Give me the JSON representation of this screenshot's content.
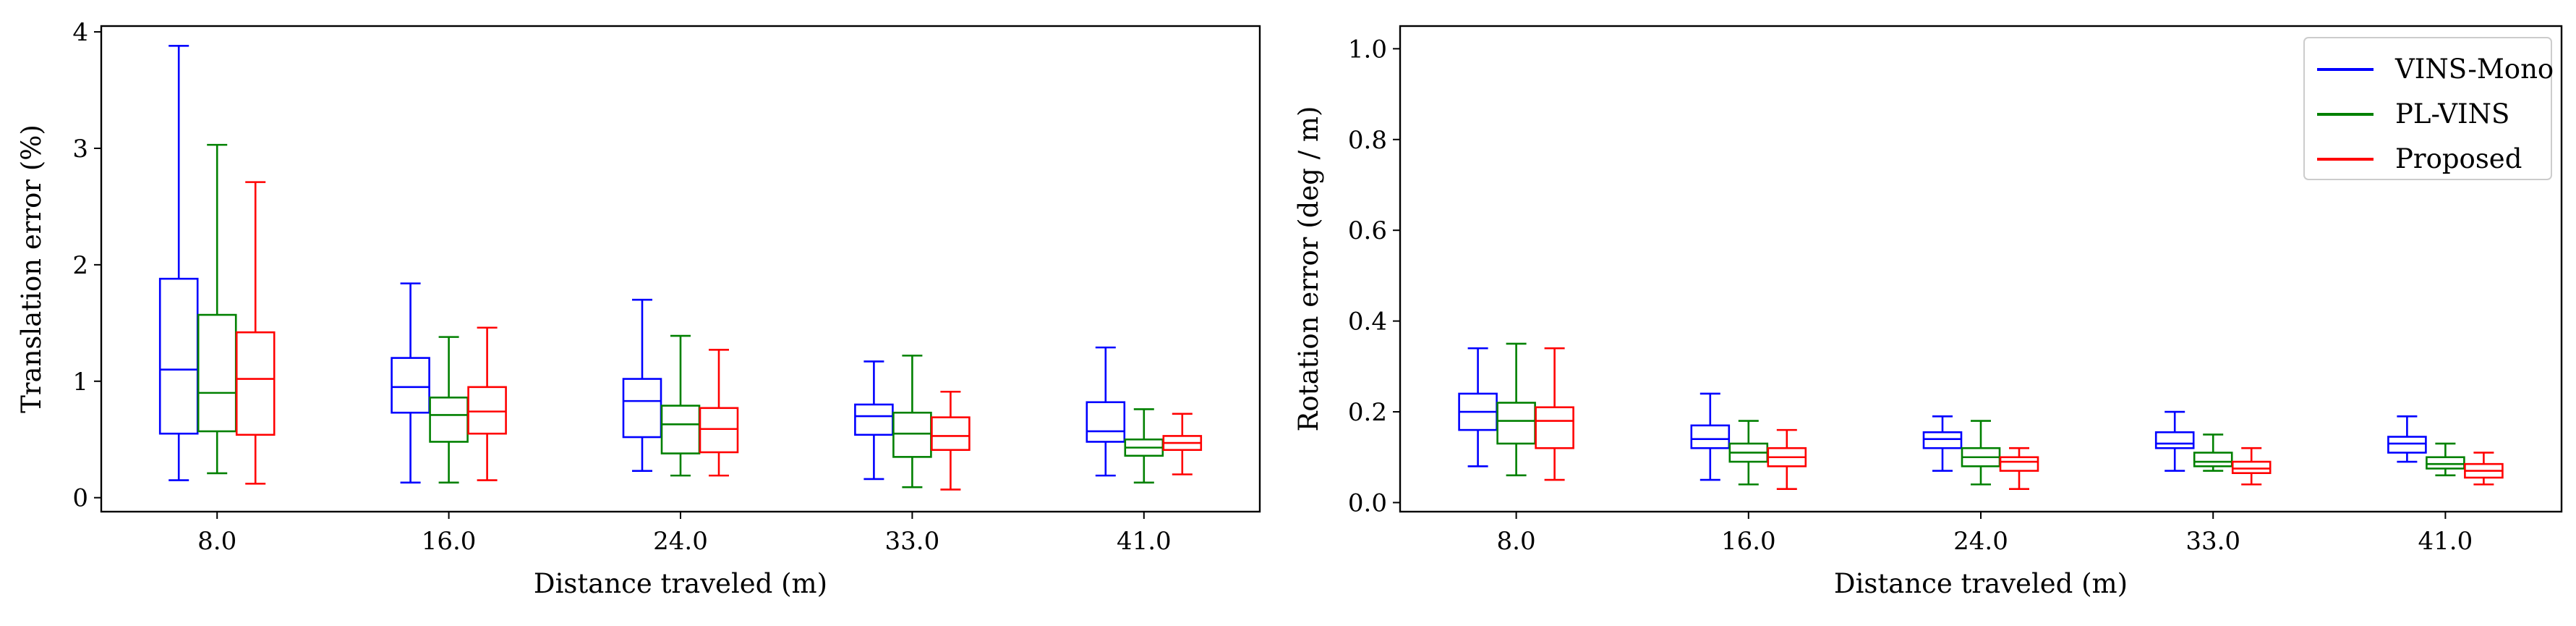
{
  "chart_data": [
    {
      "type": "box",
      "xlabel": "Distance traveled (m)",
      "ylabel": "Translation error (%)",
      "categories": [
        "8.0",
        "16.0",
        "24.0",
        "33.0",
        "41.0"
      ],
      "yticks": [
        "0",
        "1",
        "2",
        "3",
        "4"
      ],
      "ylim": [
        -0.12,
        4.05
      ],
      "grid": false,
      "series": [
        {
          "name": "VINS-Mono",
          "color": "#0000ff",
          "boxes": [
            {
              "whislo": 0.15,
              "q1": 0.55,
              "med": 1.1,
              "q3": 1.88,
              "whishi": 3.88
            },
            {
              "whislo": 0.13,
              "q1": 0.73,
              "med": 0.95,
              "q3": 1.2,
              "whishi": 1.84
            },
            {
              "whislo": 0.23,
              "q1": 0.52,
              "med": 0.83,
              "q3": 1.02,
              "whishi": 1.7
            },
            {
              "whislo": 0.16,
              "q1": 0.54,
              "med": 0.7,
              "q3": 0.8,
              "whishi": 1.17
            },
            {
              "whislo": 0.19,
              "q1": 0.48,
              "med": 0.57,
              "q3": 0.82,
              "whishi": 1.29
            }
          ]
        },
        {
          "name": "PL-VINS",
          "color": "#008000",
          "boxes": [
            {
              "whislo": 0.21,
              "q1": 0.57,
              "med": 0.9,
              "q3": 1.57,
              "whishi": 3.03
            },
            {
              "whislo": 0.13,
              "q1": 0.48,
              "med": 0.71,
              "q3": 0.86,
              "whishi": 1.38
            },
            {
              "whislo": 0.19,
              "q1": 0.38,
              "med": 0.63,
              "q3": 0.79,
              "whishi": 1.39
            },
            {
              "whislo": 0.09,
              "q1": 0.35,
              "med": 0.55,
              "q3": 0.73,
              "whishi": 1.22
            },
            {
              "whislo": 0.13,
              "q1": 0.36,
              "med": 0.43,
              "q3": 0.5,
              "whishi": 0.76
            }
          ]
        },
        {
          "name": "Proposed",
          "color": "#ff0000",
          "boxes": [
            {
              "whislo": 0.12,
              "q1": 0.54,
              "med": 1.02,
              "q3": 1.42,
              "whishi": 2.71
            },
            {
              "whislo": 0.15,
              "q1": 0.55,
              "med": 0.74,
              "q3": 0.95,
              "whishi": 1.46
            },
            {
              "whislo": 0.19,
              "q1": 0.39,
              "med": 0.59,
              "q3": 0.77,
              "whishi": 1.27
            },
            {
              "whislo": 0.07,
              "q1": 0.41,
              "med": 0.53,
              "q3": 0.69,
              "whishi": 0.91
            },
            {
              "whislo": 0.2,
              "q1": 0.41,
              "med": 0.47,
              "q3": 0.53,
              "whishi": 0.72
            }
          ]
        }
      ]
    },
    {
      "type": "box",
      "xlabel": "Distance traveled (m)",
      "ylabel": "Rotation error (deg / m)",
      "categories": [
        "8.0",
        "16.0",
        "24.0",
        "33.0",
        "41.0"
      ],
      "yticks": [
        "0.0",
        "0.2",
        "0.4",
        "0.6",
        "0.8",
        "1.0"
      ],
      "ylim": [
        -0.02,
        1.05
      ],
      "grid": false,
      "legend": {
        "position": "top-right",
        "entries": [
          "VINS-Mono",
          "PL-VINS",
          "Proposed"
        ]
      },
      "series": [
        {
          "name": "VINS-Mono",
          "color": "#0000ff",
          "boxes": [
            {
              "whislo": 0.08,
              "q1": 0.16,
              "med": 0.2,
              "q3": 0.24,
              "whishi": 0.34
            },
            {
              "whislo": 0.05,
              "q1": 0.12,
              "med": 0.14,
              "q3": 0.17,
              "whishi": 0.24
            },
            {
              "whislo": 0.07,
              "q1": 0.12,
              "med": 0.14,
              "q3": 0.155,
              "whishi": 0.19
            },
            {
              "whislo": 0.07,
              "q1": 0.12,
              "med": 0.13,
              "q3": 0.155,
              "whishi": 0.2
            },
            {
              "whislo": 0.09,
              "q1": 0.11,
              "med": 0.13,
              "q3": 0.145,
              "whishi": 0.19
            }
          ]
        },
        {
          "name": "PL-VINS",
          "color": "#008000",
          "boxes": [
            {
              "whislo": 0.06,
              "q1": 0.13,
              "med": 0.18,
              "q3": 0.22,
              "whishi": 0.35
            },
            {
              "whislo": 0.04,
              "q1": 0.09,
              "med": 0.11,
              "q3": 0.13,
              "whishi": 0.18
            },
            {
              "whislo": 0.04,
              "q1": 0.08,
              "med": 0.1,
              "q3": 0.12,
              "whishi": 0.18
            },
            {
              "whislo": 0.07,
              "q1": 0.08,
              "med": 0.09,
              "q3": 0.11,
              "whishi": 0.15
            },
            {
              "whislo": 0.06,
              "q1": 0.075,
              "med": 0.085,
              "q3": 0.1,
              "whishi": 0.13
            }
          ]
        },
        {
          "name": "Proposed",
          "color": "#ff0000",
          "boxes": [
            {
              "whislo": 0.05,
              "q1": 0.12,
              "med": 0.18,
              "q3": 0.21,
              "whishi": 0.34
            },
            {
              "whislo": 0.03,
              "q1": 0.08,
              "med": 0.1,
              "q3": 0.12,
              "whishi": 0.16
            },
            {
              "whislo": 0.03,
              "q1": 0.07,
              "med": 0.09,
              "q3": 0.1,
              "whishi": 0.12
            },
            {
              "whislo": 0.04,
              "q1": 0.065,
              "med": 0.075,
              "q3": 0.09,
              "whishi": 0.12
            },
            {
              "whislo": 0.04,
              "q1": 0.055,
              "med": 0.07,
              "q3": 0.085,
              "whishi": 0.11
            }
          ]
        }
      ]
    }
  ]
}
